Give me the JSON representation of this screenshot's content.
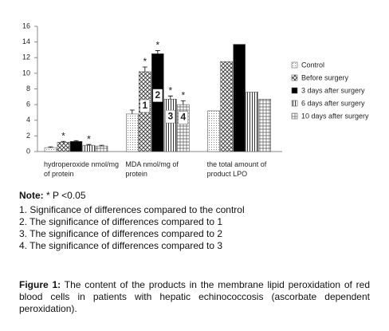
{
  "chart_data": {
    "type": "bar",
    "categories": [
      "hydroperoxide nmol/mg of protein",
      "MDA nmol/mg of protein",
      "the total amount of product LPO"
    ],
    "ylim": [
      0,
      16
    ],
    "yticks": [
      0,
      2,
      4,
      6,
      8,
      10,
      12,
      14,
      16
    ],
    "grid": false,
    "legend": "right",
    "series": [
      {
        "name": "Control",
        "color": "#333333",
        "pattern": "dots",
        "values": [
          0.5,
          4.8,
          5.2
        ],
        "errors": [
          0.1,
          0.5,
          null
        ],
        "significance": [
          null,
          null,
          null
        ],
        "inner_labels": [
          null,
          null,
          null
        ]
      },
      {
        "name": "Before surgery",
        "color": "#333333",
        "pattern": "crosshatch",
        "values": [
          1.2,
          10.2,
          11.5
        ],
        "errors": [
          0.1,
          0.6,
          null
        ],
        "significance": [
          "*",
          "*",
          null
        ],
        "inner_labels": [
          null,
          "1",
          null
        ]
      },
      {
        "name": "3 days after surgery",
        "color": "#000000",
        "pattern": "solid",
        "values": [
          1.3,
          12.5,
          13.7
        ],
        "errors": [
          0.1,
          0.4,
          null
        ],
        "significance": [
          null,
          "*",
          null
        ],
        "inner_labels": [
          null,
          "2",
          null
        ]
      },
      {
        "name": "6 days after surgery",
        "color": "#333333",
        "pattern": "vertical",
        "values": [
          0.8,
          6.7,
          7.6
        ],
        "errors": [
          0.1,
          0.4,
          null
        ],
        "significance": [
          "*",
          "*",
          null
        ],
        "inner_labels": [
          null,
          "3",
          null
        ]
      },
      {
        "name": "10 days after surgery",
        "color": "#333333",
        "pattern": "grid",
        "values": [
          0.7,
          6.0,
          6.7
        ],
        "errors": [
          0.1,
          0.5,
          null
        ],
        "significance": [
          null,
          "*",
          null
        ],
        "inner_labels": [
          null,
          "4",
          null
        ]
      }
    ]
  },
  "notes": {
    "label": "Note:",
    "text": "* P <0.05",
    "items": [
      "1. Significance of differences compared to the control",
      "2. The significance of differences compared to 1",
      "3. The significance of differences compared to 2",
      "4. The significance of differences compared to 3"
    ]
  },
  "caption": {
    "label": "Figure 1:",
    "text": "The content of the products in the membrane lipid peroxidation of red blood cells in patients with hepatic echinococcosis (ascorbate dependent peroxidation)."
  }
}
